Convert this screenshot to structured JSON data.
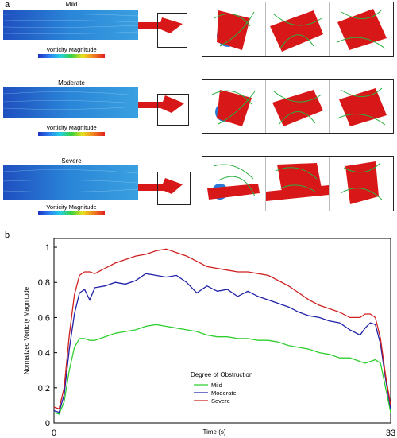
{
  "panel_a": {
    "letter": "a",
    "rows": [
      {
        "case": "Mild",
        "colorbar_label": "Vorticity Magnitude"
      },
      {
        "case": "Moderate",
        "colorbar_label": "Vorticity Magnitude"
      },
      {
        "case": "Severe",
        "colorbar_label": "Vorticity Magnitude"
      }
    ],
    "colors": {
      "flow_blue": "#1f5fd0",
      "stent_red": "#d81818",
      "streamline_green": "#2ab040"
    }
  },
  "panel_b": {
    "letter": "b",
    "chart_data": {
      "type": "line",
      "title": "",
      "xlabel": "Time (s)",
      "ylabel": "Normalized Vorticity Magnitude",
      "xlim": [
        0,
        33
      ],
      "ylim": [
        0,
        1.05
      ],
      "x_ticks": [
        "0",
        "33"
      ],
      "y_ticks": [
        "0",
        "0.2",
        "0.4",
        "0.6",
        "0.8",
        "1"
      ],
      "legend_title": "Degree of Obstruction",
      "legend_position": "center-bottom",
      "x": [
        0,
        0.5,
        1,
        1.5,
        2,
        2.5,
        3,
        3.5,
        4,
        5,
        6,
        7,
        8,
        9,
        10,
        11,
        12,
        13,
        14,
        15,
        16,
        17,
        18,
        19,
        20,
        21,
        22,
        23,
        24,
        25,
        26,
        27,
        28,
        29,
        30,
        30.5,
        31,
        31.5,
        32,
        32.5,
        33
      ],
      "series": [
        {
          "name": "Mild",
          "color": "#2fcf2f",
          "values": [
            0.06,
            0.05,
            0.12,
            0.3,
            0.43,
            0.48,
            0.48,
            0.47,
            0.47,
            0.49,
            0.51,
            0.52,
            0.53,
            0.55,
            0.56,
            0.55,
            0.54,
            0.53,
            0.52,
            0.5,
            0.49,
            0.49,
            0.48,
            0.48,
            0.47,
            0.47,
            0.46,
            0.44,
            0.43,
            0.42,
            0.4,
            0.39,
            0.37,
            0.37,
            0.35,
            0.34,
            0.35,
            0.36,
            0.34,
            0.2,
            0.06
          ]
        },
        {
          "name": "Moderate",
          "color": "#2020a8",
          "values": [
            0.07,
            0.06,
            0.16,
            0.42,
            0.62,
            0.74,
            0.76,
            0.7,
            0.77,
            0.78,
            0.8,
            0.79,
            0.81,
            0.85,
            0.84,
            0.83,
            0.84,
            0.8,
            0.74,
            0.78,
            0.75,
            0.76,
            0.72,
            0.75,
            0.72,
            0.7,
            0.68,
            0.66,
            0.63,
            0.61,
            0.6,
            0.58,
            0.57,
            0.53,
            0.5,
            0.54,
            0.57,
            0.56,
            0.45,
            0.25,
            0.08
          ]
        },
        {
          "name": "Severe",
          "color": "#d02020",
          "values": [
            0.09,
            0.08,
            0.2,
            0.5,
            0.73,
            0.84,
            0.86,
            0.86,
            0.85,
            0.88,
            0.91,
            0.93,
            0.95,
            0.96,
            0.98,
            0.99,
            0.97,
            0.95,
            0.92,
            0.89,
            0.88,
            0.87,
            0.86,
            0.86,
            0.85,
            0.84,
            0.81,
            0.78,
            0.74,
            0.7,
            0.67,
            0.65,
            0.63,
            0.6,
            0.6,
            0.62,
            0.62,
            0.6,
            0.48,
            0.27,
            0.1
          ]
        }
      ]
    }
  }
}
